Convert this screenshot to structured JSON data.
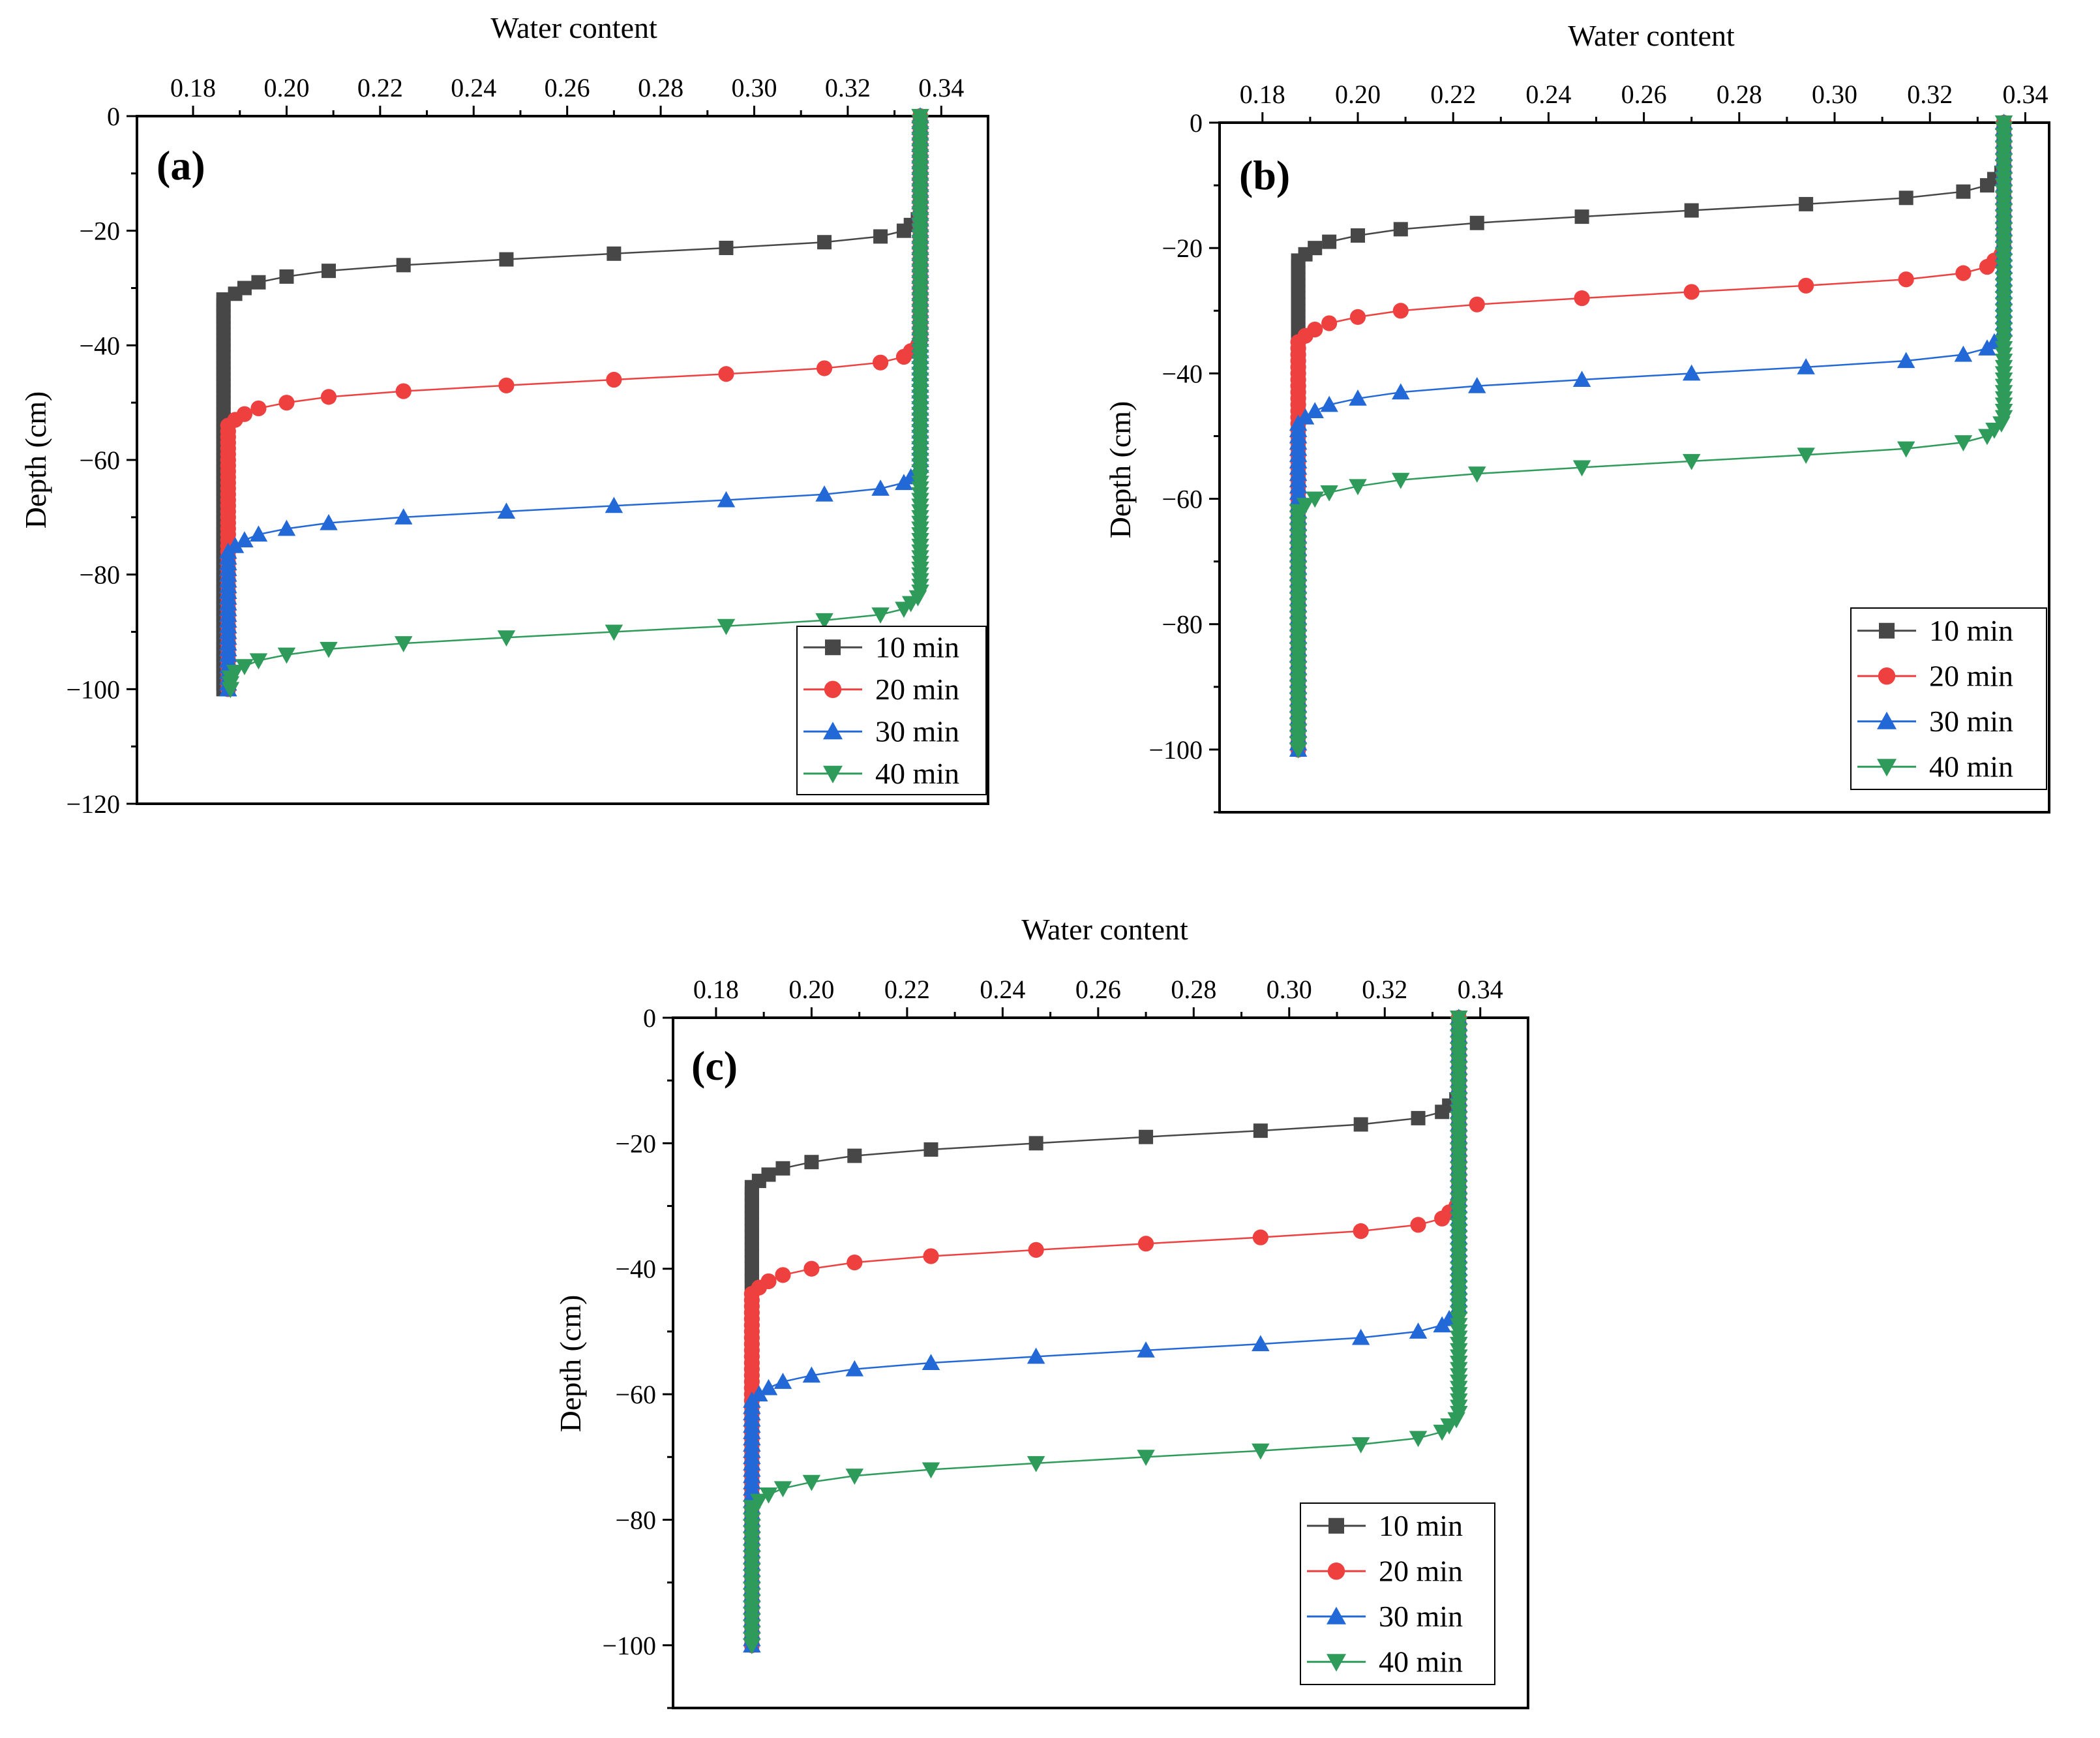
{
  "figure": {
    "series_meta": [
      {
        "name": "10 min",
        "color": "#474747",
        "marker": "square"
      },
      {
        "name": "20 min",
        "color": "#ef4040",
        "marker": "circle"
      },
      {
        "name": "30 min",
        "color": "#2268d6",
        "marker": "triangle-up"
      },
      {
        "name": "40 min",
        "color": "#2e9b5a",
        "marker": "triangle-down"
      }
    ]
  },
  "chart_data": [
    {
      "type": "line",
      "panel": "(a)",
      "xlabel": "Water content",
      "ylabel": "Depth (cm)",
      "xlim": [
        0.168,
        0.35
      ],
      "ylim": [
        -120,
        0
      ],
      "xticks": [
        "0.18",
        "0.20",
        "0.22",
        "0.24",
        "0.26",
        "0.28",
        "0.30",
        "0.32",
        "0.34"
      ],
      "yticks": [
        "0",
        "−20",
        "−40",
        "−60",
        "−80",
        "−100",
        "−120"
      ],
      "legend": [
        "10 min",
        "20 min",
        "30 min",
        "40 min"
      ],
      "legend_position": "bottom-right",
      "series": [
        {
          "name": "10 min",
          "front": -23,
          "x_bottom": 0.1865
        },
        {
          "name": "20 min",
          "front": -45,
          "x_bottom": 0.1875
        },
        {
          "name": "30 min",
          "front": -67,
          "x_bottom": 0.1875
        },
        {
          "name": "40 min",
          "front": -89,
          "x_bottom": 0.188
        }
      ]
    },
    {
      "type": "line",
      "panel": "(b)",
      "xlabel": "Water content",
      "ylabel": "Depth (cm)",
      "xlim": [
        0.171,
        0.345
      ],
      "ylim": [
        -110,
        0
      ],
      "xticks": [
        "0.18",
        "0.20",
        "0.22",
        "0.24",
        "0.26",
        "0.28",
        "0.30",
        "0.32",
        "0.34"
      ],
      "yticks": [
        "0",
        "−20",
        "−40",
        "−60",
        "−80",
        "−100"
      ],
      "legend": [
        "10 min",
        "20 min",
        "30 min",
        "40 min"
      ],
      "legend_position": "bottom-right",
      "series": [
        {
          "name": "10 min",
          "front": -13,
          "x_bottom": 0.1875
        },
        {
          "name": "20 min",
          "front": -26,
          "x_bottom": 0.1875
        },
        {
          "name": "30 min",
          "front": -39,
          "x_bottom": 0.1875
        },
        {
          "name": "40 min",
          "front": -53,
          "x_bottom": 0.1875
        }
      ]
    },
    {
      "type": "line",
      "panel": "(c)",
      "xlabel": "Water content",
      "ylabel": "Depth (cm)",
      "xlim": [
        0.171,
        0.35
      ],
      "ylim": [
        -110,
        0
      ],
      "xticks": [
        "0.18",
        "0.20",
        "0.22",
        "0.24",
        "0.26",
        "0.28",
        "0.30",
        "0.32",
        "0.34"
      ],
      "yticks": [
        "0",
        "−20",
        "−40",
        "−60",
        "−80",
        "−100"
      ],
      "legend": [
        "10 min",
        "20 min",
        "30 min",
        "40 min"
      ],
      "legend_position": "bottom-right",
      "series": [
        {
          "name": "10 min",
          "front": -18,
          "x_bottom": 0.1875
        },
        {
          "name": "20 min",
          "front": -35,
          "x_bottom": 0.1875
        },
        {
          "name": "30 min",
          "front": -52,
          "x_bottom": 0.1875
        },
        {
          "name": "40 min",
          "front": -69,
          "x_bottom": 0.1875
        }
      ]
    }
  ]
}
